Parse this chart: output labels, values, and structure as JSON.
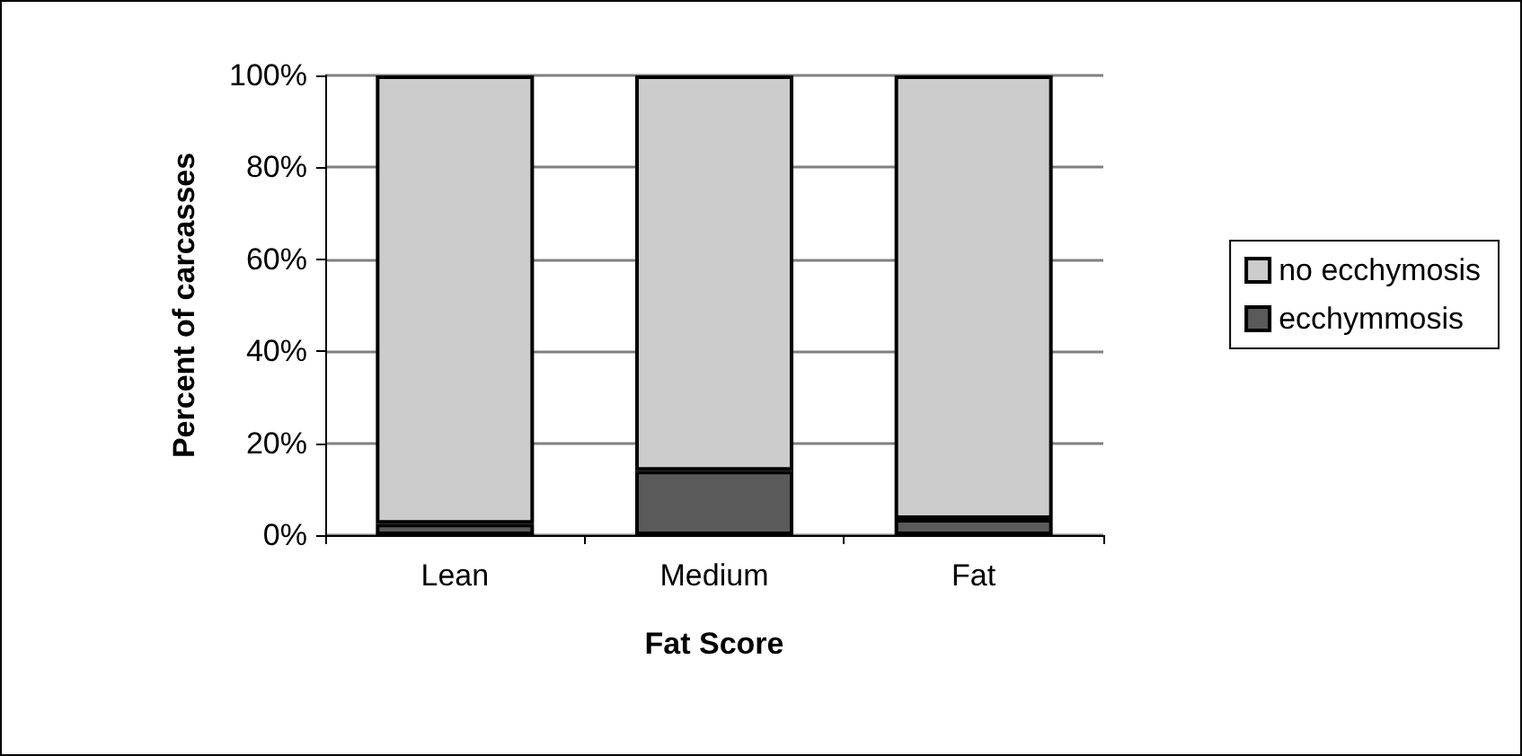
{
  "chart_data": {
    "type": "bar",
    "stacked": true,
    "xlabel": "Fat Score",
    "ylabel": "Percent of carcasses",
    "categories": [
      "Lean",
      "Medium",
      "Fat"
    ],
    "series": [
      {
        "name": "ecchymmosis",
        "color": "#5a5a5a",
        "values": [
          2.5,
          14,
          3.5
        ]
      },
      {
        "name": "no ecchymosis",
        "color": "#cccccc",
        "values": [
          97.5,
          86,
          96.5
        ]
      }
    ],
    "ylim": [
      0,
      100
    ],
    "yticks": [
      {
        "value": 0,
        "label": "0%"
      },
      {
        "value": 20,
        "label": "20%"
      },
      {
        "value": 40,
        "label": "40%"
      },
      {
        "value": 60,
        "label": "60%"
      },
      {
        "value": 80,
        "label": "80%"
      },
      {
        "value": 100,
        "label": "100%"
      }
    ],
    "grid": "y",
    "legend": "right"
  }
}
